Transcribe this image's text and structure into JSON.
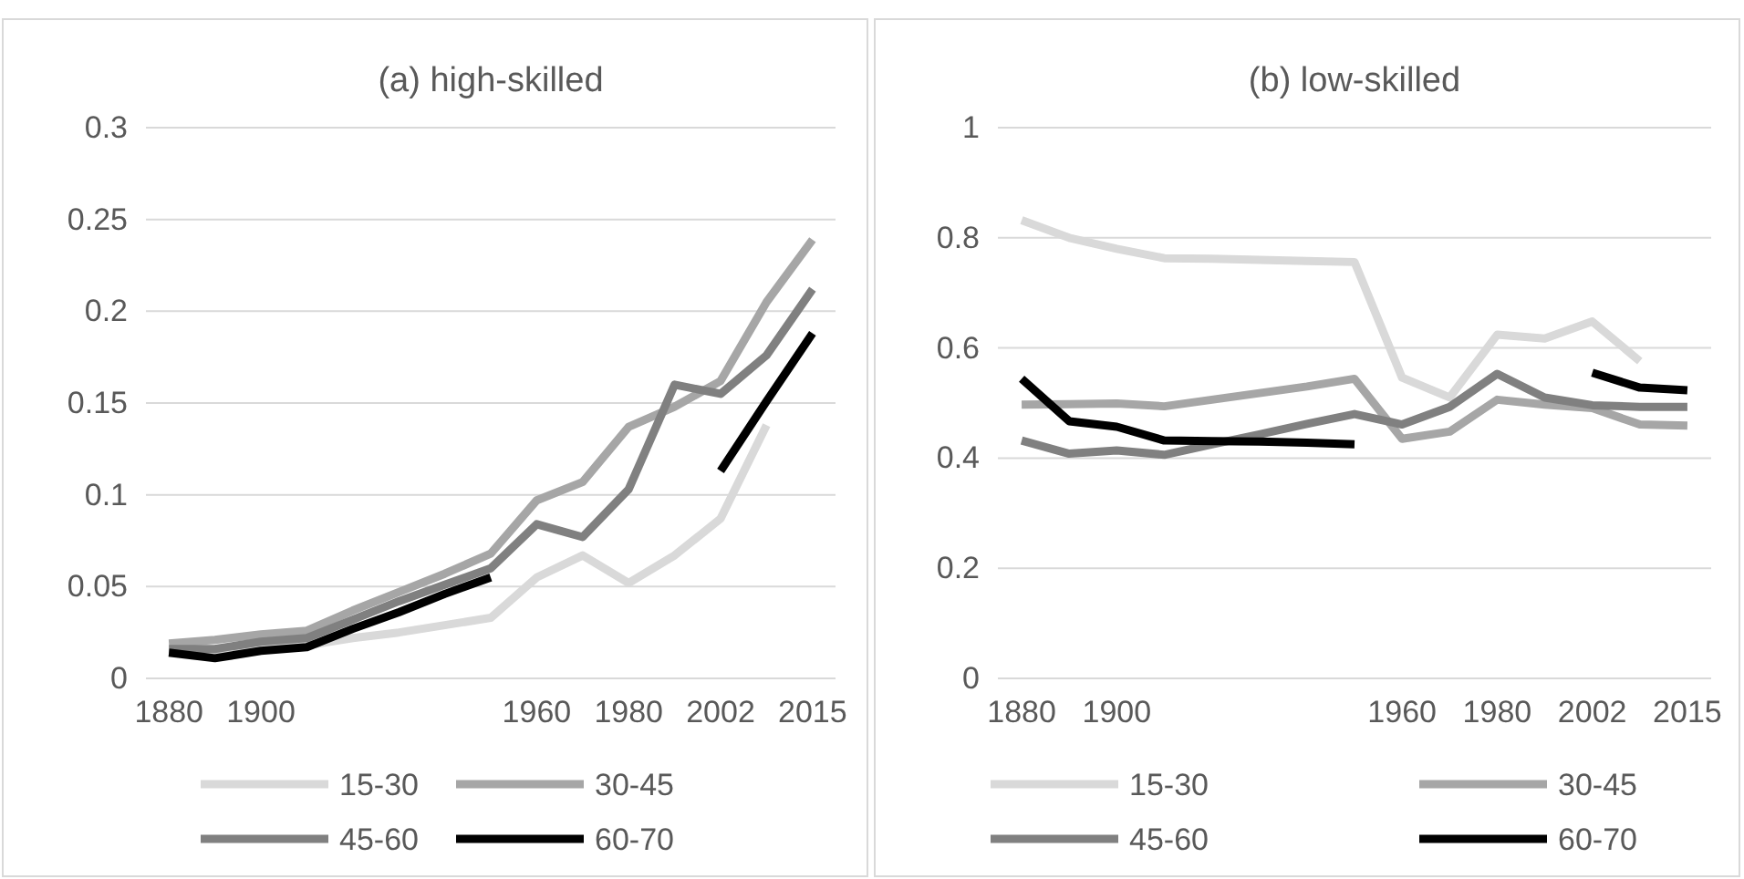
{
  "chart_data": [
    {
      "type": "line",
      "title": "(a) high-skilled",
      "categories": [
        "1880",
        null,
        "1900",
        null,
        null,
        null,
        null,
        null,
        "1960",
        null,
        "1980",
        null,
        "2002",
        null,
        "2015"
      ],
      "ylim": [
        0,
        0.3
      ],
      "yticks": [
        0,
        0.05,
        0.1,
        0.15,
        0.2,
        0.25,
        0.3
      ],
      "grid": "y",
      "legend": "bottom",
      "series": [
        {
          "name": "15-30",
          "color": "#d9d9d9",
          "values": [
            0.015,
            0.013,
            0.017,
            0.018,
            0.022,
            0.025,
            0.029,
            0.033,
            0.055,
            0.067,
            0.052,
            0.067,
            0.087,
            0.138,
            null
          ]
        },
        {
          "name": "30-45",
          "color": "#a6a6a6",
          "values": [
            0.019,
            0.021,
            0.024,
            0.026,
            0.037,
            0.047,
            0.057,
            0.068,
            0.097,
            0.107,
            0.137,
            0.148,
            0.162,
            0.205,
            0.239
          ]
        },
        {
          "name": "45-60",
          "color": "#808080",
          "values": [
            0.016,
            0.016,
            0.02,
            0.022,
            0.032,
            0.042,
            0.051,
            0.06,
            0.084,
            0.077,
            0.103,
            0.16,
            0.155,
            0.176,
            0.212
          ]
        },
        {
          "name": "60-70",
          "color": "#000000",
          "values": [
            0.014,
            0.011,
            0.015,
            0.017,
            0.027,
            0.036,
            0.046,
            0.055,
            null,
            null,
            null,
            null,
            0.113,
            0.151,
            0.188
          ]
        }
      ]
    },
    {
      "type": "line",
      "title": "(b) low-skilled",
      "categories": [
        "1880",
        null,
        "1900",
        null,
        null,
        null,
        null,
        null,
        "1960",
        null,
        "1980",
        null,
        "2002",
        null,
        "2015"
      ],
      "ylim": [
        0,
        1
      ],
      "yticks": [
        0,
        0.2,
        0.4,
        0.6,
        0.8,
        1
      ],
      "grid": "y",
      "legend": "bottom",
      "series": [
        {
          "name": "15-30",
          "color": "#d9d9d9",
          "values": [
            0.832,
            0.8,
            0.78,
            0.763,
            0.762,
            0.76,
            0.758,
            0.756,
            0.546,
            0.51,
            0.624,
            0.617,
            0.648,
            0.576,
            null
          ]
        },
        {
          "name": "30-45",
          "color": "#a6a6a6",
          "values": [
            0.497,
            0.498,
            0.499,
            0.494,
            0.506,
            0.518,
            0.53,
            0.544,
            0.435,
            0.448,
            0.506,
            0.497,
            0.491,
            0.461,
            0.459
          ]
        },
        {
          "name": "45-60",
          "color": "#808080",
          "values": [
            0.432,
            0.408,
            0.414,
            0.406,
            0.425,
            0.443,
            0.462,
            0.48,
            0.461,
            0.493,
            0.553,
            0.51,
            0.496,
            0.493,
            0.493
          ]
        },
        {
          "name": "60-70",
          "color": "#000000",
          "values": [
            0.544,
            0.467,
            0.457,
            0.432,
            0.431,
            0.43,
            0.428,
            0.425,
            null,
            null,
            null,
            null,
            0.555,
            0.528,
            0.523
          ]
        }
      ]
    }
  ]
}
